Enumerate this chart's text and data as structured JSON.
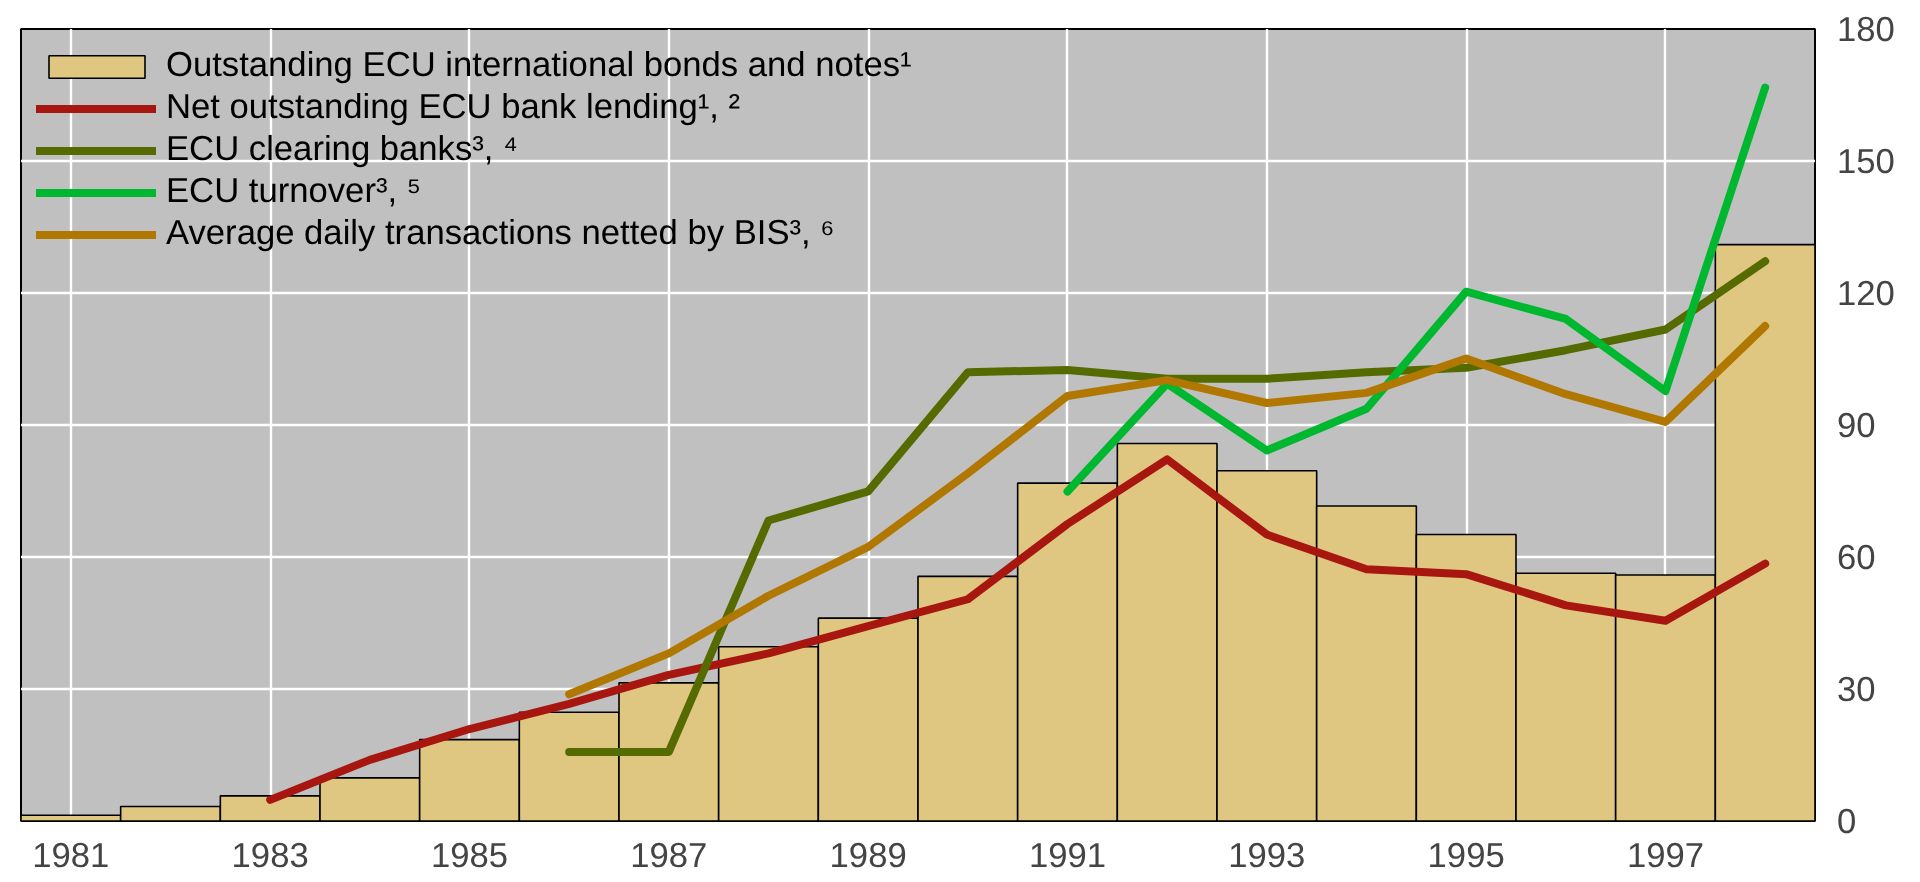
{
  "chart_data": {
    "type": "bar",
    "x": [
      1981,
      1982,
      1983,
      1984,
      1985,
      1986,
      1987,
      1988,
      1989,
      1990,
      1991,
      1992,
      1993,
      1994,
      1995,
      1996,
      1997,
      1998
    ],
    "series": [
      {
        "name": "Outstanding ECU international bonds and notes¹",
        "color": "#dfc782",
        "values": [
          1.3,
          3.3,
          5.7,
          9.8,
          18.5,
          24.7,
          31.4,
          39.6,
          46.1,
          55.6,
          76.8,
          85.8,
          79.6,
          71.6,
          65.1,
          56.3,
          55.9,
          131
        ]
      },
      {
        "name": "Net outstanding ECU bank lending¹, ²",
        "type": "line",
        "color": "#a8170f",
        "x": [
          1983,
          1984,
          1985,
          1986,
          1987,
          1988,
          1989,
          1990,
          1991,
          1992,
          1993,
          1994,
          1995,
          1996,
          1997,
          1998
        ],
        "values": [
          4.8,
          13.9,
          20.9,
          26.6,
          33.2,
          38.1,
          44.3,
          50.4,
          67.5,
          82.2,
          65.1,
          57.2,
          56.1,
          49,
          45.5,
          58.5
        ]
      },
      {
        "name": "ECU clearing banks³, ⁴",
        "type": "line",
        "color": "#556b00",
        "x": [
          1986,
          1987,
          1988,
          1989,
          1990,
          1991,
          1992,
          1993,
          1994,
          1995,
          1996,
          1997,
          1998
        ],
        "values": [
          15.7,
          15.7,
          68.3,
          74.9,
          102,
          102.5,
          100.5,
          100.5,
          102,
          103,
          107,
          111.7,
          127.2
        ]
      },
      {
        "name": "ECU turnover³, ⁵",
        "type": "line",
        "color": "#00b830",
        "x": [
          1991,
          1992,
          1993,
          1994,
          1995,
          1996,
          1997,
          1998
        ],
        "values": [
          74.9,
          99.4,
          84.2,
          93.7,
          120.3,
          114.1,
          97.7,
          166.7
        ]
      },
      {
        "name": "Average daily transactions netted by BIS³, ⁶",
        "type": "line",
        "color": "#b07800",
        "x": [
          1986,
          1987,
          1988,
          1989,
          1990,
          1991,
          1992,
          1993,
          1994,
          1995,
          1996,
          1997,
          1998
        ],
        "values": [
          28.8,
          38.1,
          51.2,
          62.3,
          79,
          96.6,
          100.2,
          95,
          97.3,
          105.1,
          97,
          90.7,
          112.5
        ]
      }
    ],
    "xlim": [
      1980.5,
      1998.5
    ],
    "xticks": [
      1981,
      1983,
      1985,
      1987,
      1989,
      1991,
      1993,
      1995,
      1997
    ],
    "ylim": [
      0,
      180
    ],
    "yticks": [
      0,
      30,
      60,
      90,
      120,
      150,
      180
    ],
    "grid": true,
    "legend": "top left",
    "line_style": "solid",
    "marker": "none"
  }
}
